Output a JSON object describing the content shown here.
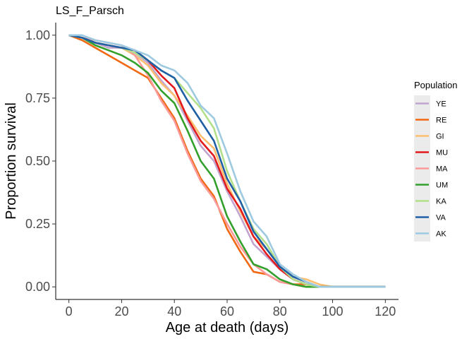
{
  "chart_data": {
    "type": "line",
    "title": "LS_F_Parsch",
    "xlabel": "Age at death (days)",
    "ylabel": "Proportion survival",
    "xlim": [
      -5,
      125
    ],
    "ylim": [
      -0.05,
      1.05
    ],
    "xticks": [
      0,
      20,
      40,
      60,
      80,
      100,
      120
    ],
    "xtick_labels": [
      "0",
      "20",
      "40",
      "60",
      "80",
      "100",
      "120"
    ],
    "yticks": [
      0,
      0.25,
      0.5,
      0.75,
      1.0
    ],
    "ytick_labels": [
      "0.00",
      "0.25",
      "0.50",
      "0.75",
      "1.00"
    ],
    "grid": false,
    "legend": {
      "title": "Population",
      "position": "right"
    },
    "x": [
      0,
      5,
      10,
      15,
      20,
      25,
      30,
      35,
      40,
      45,
      50,
      55,
      60,
      65,
      70,
      75,
      80,
      85,
      90,
      95,
      100,
      105,
      110,
      115,
      120
    ],
    "series": [
      {
        "name": "YE",
        "color": "#c2a5cf",
        "values": [
          1.0,
          0.99,
          0.97,
          0.95,
          0.95,
          0.93,
          0.89,
          0.82,
          0.76,
          0.66,
          0.56,
          0.5,
          0.38,
          0.28,
          0.17,
          0.12,
          0.07,
          0.03,
          0.01,
          0.0,
          0.0,
          0.0,
          0.0,
          0.0,
          0.0
        ]
      },
      {
        "name": "RE",
        "color": "#f16913",
        "values": [
          1.0,
          0.98,
          0.95,
          0.92,
          0.89,
          0.86,
          0.83,
          0.75,
          0.67,
          0.54,
          0.43,
          0.36,
          0.23,
          0.14,
          0.06,
          0.05,
          0.02,
          0.01,
          0.01,
          0.0,
          0.0,
          0.0,
          0.0,
          0.0,
          0.0
        ]
      },
      {
        "name": "GI",
        "color": "#fdbf6f",
        "values": [
          1.0,
          0.99,
          0.97,
          0.96,
          0.95,
          0.92,
          0.88,
          0.81,
          0.76,
          0.68,
          0.6,
          0.55,
          0.41,
          0.3,
          0.2,
          0.15,
          0.08,
          0.04,
          0.03,
          0.01,
          0.0,
          0.0,
          0.0,
          0.0,
          0.0
        ]
      },
      {
        "name": "MU",
        "color": "#e31a1c",
        "values": [
          1.0,
          0.99,
          0.97,
          0.96,
          0.95,
          0.94,
          0.9,
          0.84,
          0.79,
          0.67,
          0.58,
          0.52,
          0.39,
          0.31,
          0.2,
          0.13,
          0.07,
          0.03,
          0.01,
          0.0,
          0.0,
          0.0,
          0.0,
          0.0,
          0.0
        ]
      },
      {
        "name": "MA",
        "color": "#fb9a99",
        "values": [
          1.0,
          0.99,
          0.98,
          0.97,
          0.96,
          0.92,
          0.84,
          0.74,
          0.66,
          0.53,
          0.42,
          0.35,
          0.25,
          0.16,
          0.09,
          0.05,
          0.02,
          0.01,
          0.0,
          0.0,
          0.0,
          0.0,
          0.0,
          0.0,
          0.0
        ]
      },
      {
        "name": "UM",
        "color": "#33a02c",
        "values": [
          1.0,
          0.99,
          0.96,
          0.94,
          0.92,
          0.89,
          0.85,
          0.78,
          0.73,
          0.62,
          0.5,
          0.43,
          0.28,
          0.18,
          0.09,
          0.07,
          0.03,
          0.01,
          0.0,
          0.0,
          0.0,
          0.0,
          0.0,
          0.0,
          0.0
        ]
      },
      {
        "name": "KA",
        "color": "#b2df8a",
        "values": [
          1.0,
          0.99,
          0.97,
          0.96,
          0.95,
          0.93,
          0.9,
          0.86,
          0.83,
          0.77,
          0.71,
          0.63,
          0.46,
          0.34,
          0.23,
          0.17,
          0.08,
          0.03,
          0.01,
          0.0,
          0.0,
          0.0,
          0.0,
          0.0,
          0.0
        ]
      },
      {
        "name": "VA",
        "color": "#1f5fa6",
        "values": [
          1.0,
          0.99,
          0.97,
          0.96,
          0.95,
          0.94,
          0.9,
          0.86,
          0.83,
          0.74,
          0.66,
          0.58,
          0.43,
          0.34,
          0.22,
          0.15,
          0.08,
          0.04,
          0.02,
          0.0,
          0.0,
          0.0,
          0.0,
          0.0,
          0.0
        ]
      },
      {
        "name": "AK",
        "color": "#9ecae1",
        "values": [
          1.0,
          1.0,
          0.98,
          0.97,
          0.96,
          0.94,
          0.92,
          0.88,
          0.86,
          0.81,
          0.72,
          0.67,
          0.53,
          0.38,
          0.26,
          0.2,
          0.09,
          0.05,
          0.02,
          0.0,
          0.0,
          0.0,
          0.0,
          0.0,
          0.0
        ]
      }
    ]
  }
}
